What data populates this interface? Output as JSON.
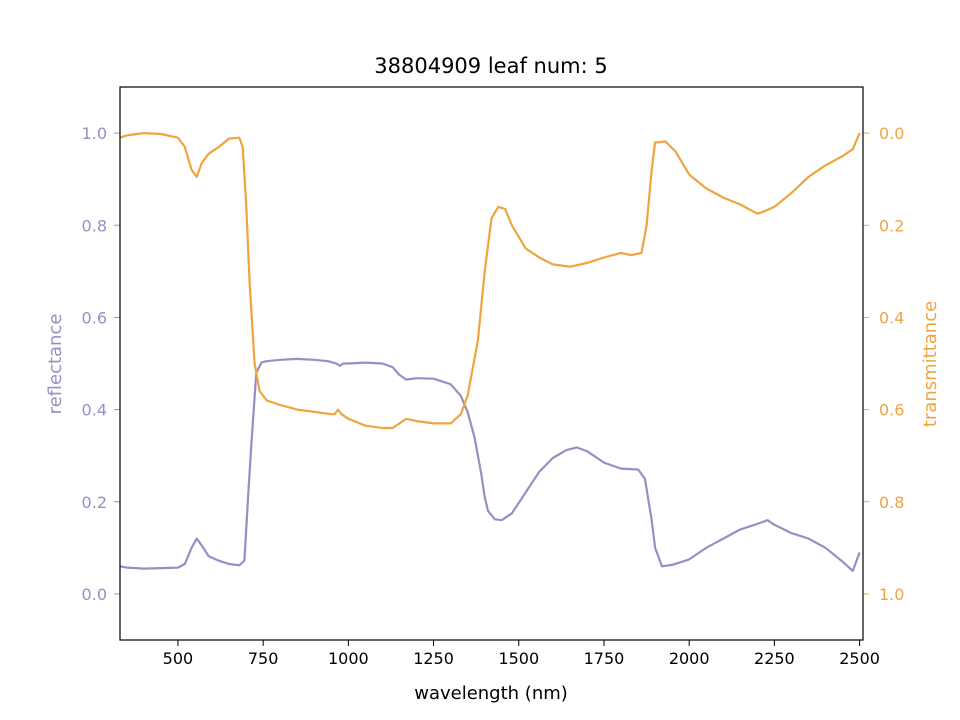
{
  "chart_data": {
    "type": "line",
    "title": "38804909 leaf num: 5",
    "xlabel": "wavelength (nm)",
    "ylabel_left": "reflectance",
    "ylabel_right": "transmittance",
    "xlim": [
      330,
      2510
    ],
    "ylim_left": [
      -0.1,
      1.1
    ],
    "ylim_right": [
      1.1,
      -0.1
    ],
    "right_axis_inverted": true,
    "grid": false,
    "x_ticks": [
      "500",
      "750",
      "1000",
      "1250",
      "1500",
      "1750",
      "2000",
      "2250",
      "2500"
    ],
    "left_ticks": [
      "0.0",
      "0.2",
      "0.4",
      "0.6",
      "0.8",
      "1.0"
    ],
    "right_ticks": [
      "0.0",
      "0.2",
      "0.4",
      "0.6",
      "0.8",
      "1.0"
    ],
    "colors": {
      "reflectance": "#9590c4",
      "transmittance": "#f0a43f",
      "axis": "#000000"
    },
    "series": [
      {
        "name": "reflectance",
        "axis": "left",
        "x": [
          330,
          350,
          400,
          450,
          500,
          520,
          540,
          555,
          570,
          590,
          620,
          650,
          680,
          695,
          705,
          715,
          730,
          745,
          760,
          800,
          850,
          900,
          940,
          965,
          975,
          985,
          1000,
          1050,
          1100,
          1130,
          1150,
          1170,
          1200,
          1250,
          1300,
          1330,
          1350,
          1370,
          1390,
          1400,
          1410,
          1430,
          1450,
          1480,
          1520,
          1560,
          1600,
          1640,
          1670,
          1700,
          1750,
          1800,
          1850,
          1870,
          1890,
          1900,
          1920,
          1950,
          2000,
          2050,
          2100,
          2150,
          2200,
          2230,
          2250,
          2300,
          2350,
          2400,
          2450,
          2480,
          2500
        ],
        "y": [
          0.06,
          0.057,
          0.055,
          0.056,
          0.057,
          0.065,
          0.1,
          0.12,
          0.105,
          0.082,
          0.072,
          0.065,
          0.062,
          0.072,
          0.2,
          0.32,
          0.48,
          0.502,
          0.505,
          0.508,
          0.51,
          0.508,
          0.505,
          0.5,
          0.495,
          0.5,
          0.5,
          0.502,
          0.5,
          0.492,
          0.475,
          0.465,
          0.468,
          0.467,
          0.455,
          0.43,
          0.395,
          0.34,
          0.26,
          0.21,
          0.18,
          0.162,
          0.16,
          0.175,
          0.22,
          0.265,
          0.295,
          0.312,
          0.318,
          0.31,
          0.285,
          0.272,
          0.27,
          0.25,
          0.16,
          0.1,
          0.06,
          0.063,
          0.075,
          0.1,
          0.12,
          0.14,
          0.152,
          0.16,
          0.15,
          0.132,
          0.12,
          0.1,
          0.07,
          0.05,
          0.09
        ]
      },
      {
        "name": "transmittance",
        "axis": "right",
        "x": [
          330,
          350,
          400,
          450,
          500,
          520,
          540,
          555,
          570,
          590,
          620,
          650,
          680,
          690,
          700,
          710,
          725,
          740,
          760,
          800,
          850,
          900,
          950,
          960,
          970,
          980,
          1000,
          1050,
          1100,
          1130,
          1150,
          1170,
          1200,
          1250,
          1300,
          1330,
          1350,
          1380,
          1400,
          1420,
          1440,
          1460,
          1480,
          1520,
          1560,
          1600,
          1650,
          1700,
          1750,
          1800,
          1830,
          1860,
          1875,
          1890,
          1900,
          1910,
          1930,
          1960,
          2000,
          2050,
          2100,
          2150,
          2200,
          2220,
          2250,
          2300,
          2350,
          2400,
          2450,
          2480,
          2500
        ],
        "y": [
          0.01,
          0.005,
          0.0,
          0.002,
          0.01,
          0.03,
          0.08,
          0.095,
          0.065,
          0.045,
          0.03,
          0.012,
          0.01,
          0.03,
          0.15,
          0.32,
          0.5,
          0.56,
          0.58,
          0.59,
          0.6,
          0.605,
          0.61,
          0.61,
          0.6,
          0.61,
          0.62,
          0.635,
          0.64,
          0.64,
          0.63,
          0.62,
          0.625,
          0.63,
          0.63,
          0.61,
          0.57,
          0.45,
          0.3,
          0.185,
          0.16,
          0.165,
          0.2,
          0.25,
          0.27,
          0.285,
          0.29,
          0.282,
          0.27,
          0.26,
          0.265,
          0.26,
          0.2,
          0.08,
          0.02,
          0.02,
          0.018,
          0.04,
          0.09,
          0.12,
          0.14,
          0.155,
          0.175,
          0.17,
          0.16,
          0.13,
          0.095,
          0.07,
          0.05,
          0.035,
          0.0
        ]
      }
    ]
  }
}
